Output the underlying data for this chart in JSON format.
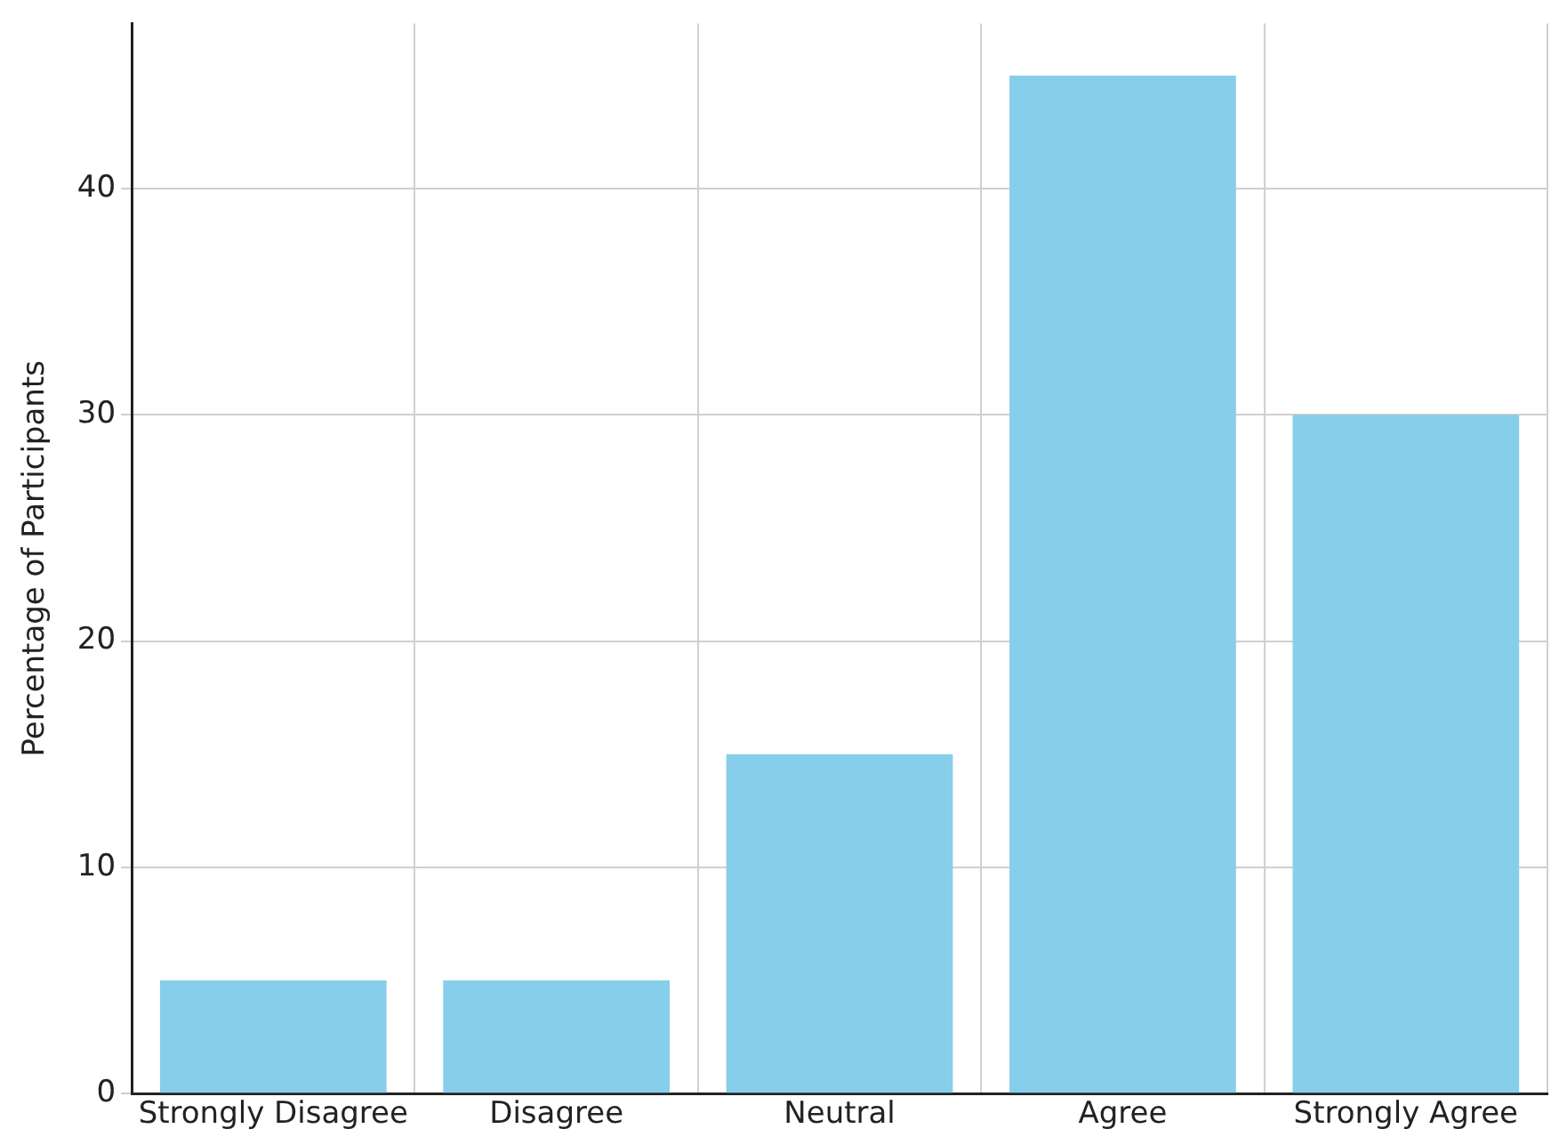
{
  "chart_data": {
    "type": "bar",
    "ylabel": "Percentage of Participants",
    "categories": [
      "Strongly Disagree",
      "Disagree",
      "Neutral",
      "Agree",
      "Strongly Agree"
    ],
    "values": [
      5,
      5,
      15,
      45,
      30
    ],
    "color": "#87ceeb",
    "ylim": [
      0,
      47.3
    ],
    "yticks": [
      0,
      10,
      20,
      30,
      40
    ],
    "grid": true
  }
}
